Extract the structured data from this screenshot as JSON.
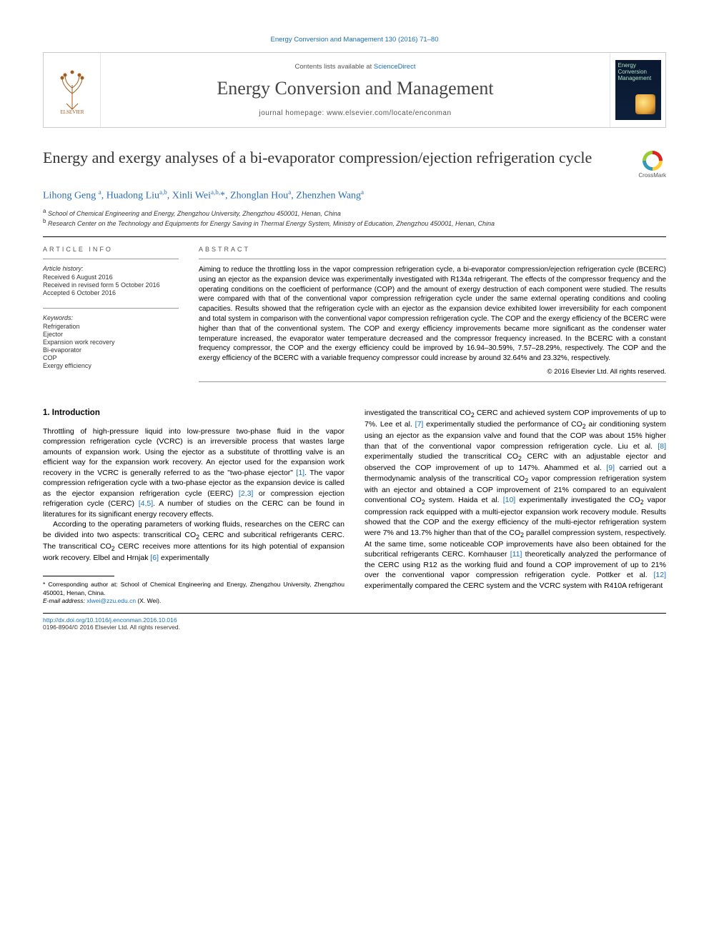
{
  "citation": "Energy Conversion and Management 130 (2016) 71–80",
  "header": {
    "contents_prefix": "Contents lists available at ",
    "contents_link": "ScienceDirect",
    "journal_name": "Energy Conversion and Management",
    "homepage_prefix": "journal homepage: ",
    "homepage": "www.elsevier.com/locate/enconman",
    "publisher_logo_label": "ELSEVIER",
    "cover_title_line1": "Energy",
    "cover_title_line2": "Conversion",
    "cover_title_line3": "Management"
  },
  "crossmark_label": "CrossMark",
  "title": "Energy and exergy analyses of a bi-evaporator compression/ejection refrigeration cycle",
  "authors_html": "Lihong Geng <sup>a</sup>, Huadong Liu<sup>a,b</sup>, Xinli Wei<sup>a,b,</sup><span class='star'>*</span>, Zhonglan Hou<sup>a</sup>, Zhenzhen Wang<sup>a</sup>",
  "affiliations": {
    "a": "a School of Chemical Engineering and Energy, Zhengzhou University, Zhengzhou 450001, Henan, China",
    "b": "b Research Center on the Technology and Equipments for Energy Saving in Thermal Energy System, Ministry of Education, Zhengzhou 450001, Henan, China"
  },
  "article_info": {
    "head": "ARTICLE INFO",
    "history_label": "Article history:",
    "received": "Received 6 August 2016",
    "revised": "Received in revised form 5 October 2016",
    "accepted": "Accepted 6 October 2016",
    "keywords_label": "Keywords:",
    "keywords": [
      "Refrigeration",
      "Ejector",
      "Expansion work recovery",
      "Bi-evaporator",
      "COP",
      "Exergy efficiency"
    ]
  },
  "abstract": {
    "head": "ABSTRACT",
    "text": "Aiming to reduce the throttling loss in the vapor compression refrigeration cycle, a bi-evaporator compression/ejection refrigeration cycle (BCERC) using an ejector as the expansion device was experimentally investigated with R134a refrigerant. The effects of the compressor frequency and the operating conditions on the coefficient of performance (COP) and the amount of exergy destruction of each component were studied. The results were compared with that of the conventional vapor compression refrigeration cycle under the same external operating conditions and cooling capacities. Results showed that the refrigeration cycle with an ejector as the expansion device exhibited lower irreversibility for each component and total system in comparison with the conventional vapor compression refrigeration cycle. The COP and the exergy efficiency of the BCERC were higher than that of the conventional system. The COP and exergy efficiency improvements became more significant as the condenser water temperature increased, the evaporator water temperature decreased and the compressor frequency increased. In the BCERC with a constant frequency compressor, the COP and the exergy efficiency could be improved by 16.94–30.59%, 7.57–28.29%, respectively. The COP and the exergy efficiency of the BCERC with a variable frequency compressor could increase by around 32.64% and 23.32%, respectively.",
    "copyright": "© 2016 Elsevier Ltd. All rights reserved."
  },
  "intro": {
    "heading": "1. Introduction",
    "p1": "Throttling of high-pressure liquid into low-pressure two-phase fluid in the vapor compression refrigeration cycle (VCRC) is an irreversible process that wastes large amounts of expansion work. Using the ejector as a substitute of throttling valve is an efficient way for the expansion work recovery. An ejector used for the expansion work recovery in the VCRC is generally referred to as the \"two-phase ejector\" [1]. The vapor compression refrigeration cycle with a two-phase ejector as the expansion device is called as the ejector expansion refrigeration cycle (EERC) [2,3] or compression ejection refrigeration cycle (CERC) [4,5]. A number of studies on the CERC can be found in literatures for its significant energy recovery effects.",
    "p2": "According to the operating parameters of working fluids, researches on the CERC can be divided into two aspects: transcritical CO₂ CERC and subcritical refrigerants CERC. The transcritical CO₂ CERC receives more attentions for its high potential of expansion work recovery. Elbel and Hrnjak [6] experimentally",
    "p3": "investigated the transcritical CO₂ CERC and achieved system COP improvements of up to 7%. Lee et al. [7] experimentally studied the performance of CO₂ air conditioning system using an ejector as the expansion valve and found that the COP was about 15% higher than that of the conventional vapor compression refrigeration cycle. Liu et al. [8] experimentally studied the transcritical CO₂ CERC with an adjustable ejector and observed the COP improvement of up to 147%. Ahammed et al. [9] carried out a thermodynamic analysis of the transcritical CO₂ vapor compression refrigeration system with an ejector and obtained a COP improvement of 21% compared to an equivalent conventional CO₂ system. Haida et al. [10] experimentally investigated the CO₂ vapor compression rack equipped with a multi-ejector expansion work recovery module. Results showed that the COP and the exergy efficiency of the multi-ejector refrigeration system were 7% and 13.7% higher than that of the CO₂ parallel compression system, respectively. At the same time, some noticeable COP improvements have also been obtained for the subcritical refrigerants CERC. Kornhauser [11] theoretically analyzed the performance of the CERC using R12 as the working fluid and found a COP improvement of up to 21% over the conventional vapor compression refrigeration cycle. Pottker et al. [12] experimentally compared the CERC system and the VCRC system with R410A refrigerant"
  },
  "footnotes": {
    "corresponding": "* Corresponding author at: School of Chemical Engineering and Energy, Zhengzhou University, Zhengzhou 450001, Henan, China.",
    "email_label": "E-mail address: ",
    "email": "xlwei@zzu.edu.cn",
    "email_suffix": " (X. Wei)."
  },
  "footer": {
    "doi_url": "http://dx.doi.org/10.1016/j.enconman.2016.10.016",
    "issn_line": "0196-8904/© 2016 Elsevier Ltd. All rights reserved."
  },
  "colors": {
    "link": "#1a6eb8",
    "text": "#000000",
    "muted": "#555555",
    "rule": "#000000"
  },
  "ref_markers": [
    "[1]",
    "[2,3]",
    "[4,5]",
    "[6]",
    "[7]",
    "[8]",
    "[9]",
    "[10]",
    "[11]",
    "[12]"
  ]
}
